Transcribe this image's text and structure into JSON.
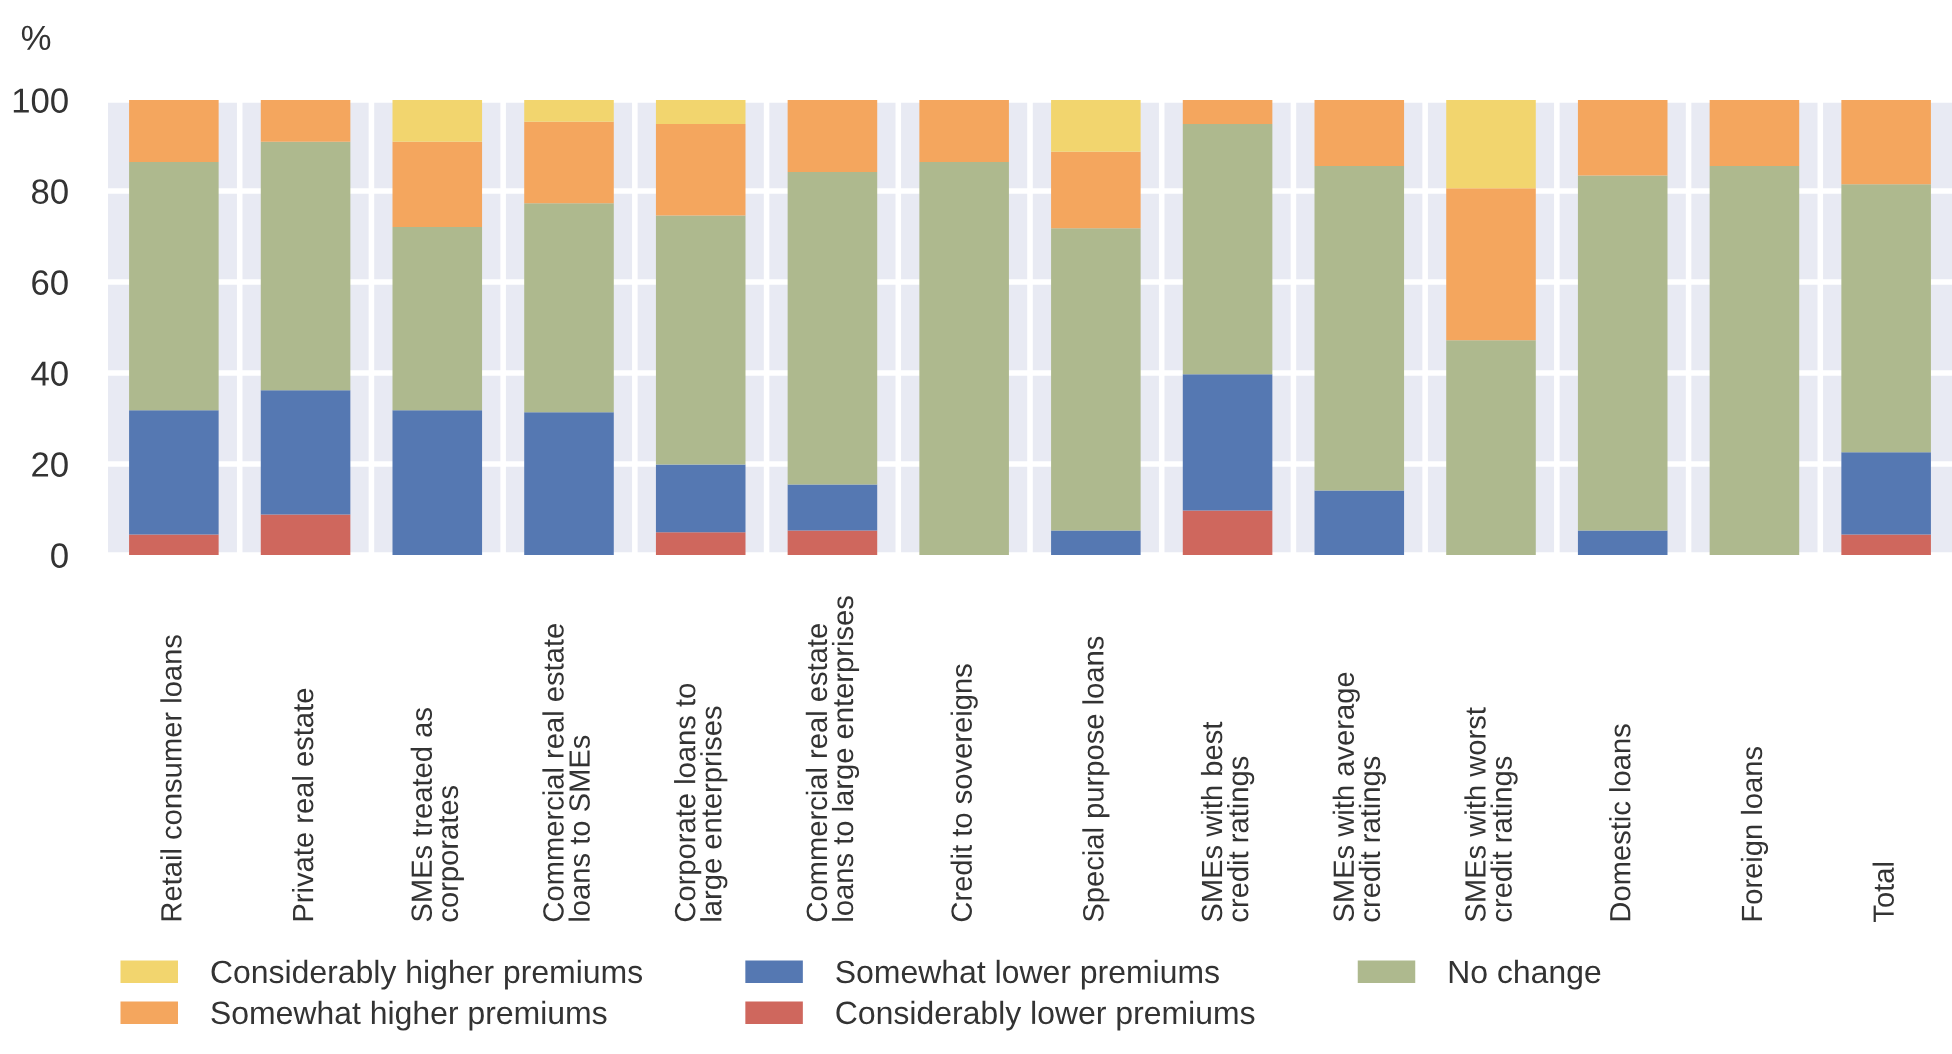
{
  "chart_data": {
    "type": "bar",
    "stacked": true,
    "ylabel": "%",
    "categories": [
      "Retail consumer loans",
      "Private real estate",
      "SMEs treated as\ncorporates",
      "Commercial real estate\nloans to SMEs",
      "Corporate loans to\nlarge enterprises",
      "Commercial real estate\nloans to large enterprises",
      "Credit to sovereigns",
      "Special purpose loans",
      "SMEs with best\ncredit ratings",
      "SMEs with average\ncredit ratings",
      "SMEs with worst\ncredit ratings",
      "Domestic loans",
      "Foreign loans",
      "Total"
    ],
    "series": [
      {
        "name": "Considerably lower premiums",
        "color": "#cf675d",
        "values": [
          4.5,
          8.9,
          null,
          null,
          5.0,
          5.4,
          null,
          null,
          9.8,
          null,
          null,
          null,
          null,
          4.5
        ]
      },
      {
        "name": "Somewhat lower premiums",
        "color": "#5578b2",
        "values": [
          27.3,
          27.3,
          31.8,
          31.4,
          14.9,
          10.1,
          null,
          5.4,
          29.9,
          14.2,
          null,
          5.4,
          null,
          18.1
        ]
      },
      {
        "name": "No change",
        "color": "#aeb98e",
        "values": [
          54.6,
          54.6,
          40.3,
          45.9,
          54.7,
          68.7,
          86.4,
          66.4,
          55.0,
          71.3,
          47.2,
          78.0,
          85.5,
          58.9
        ]
      },
      {
        "name": "Somewhat higher premiums",
        "color": "#f4a65e",
        "values": [
          13.6,
          9.2,
          18.7,
          17.9,
          20.1,
          15.8,
          13.6,
          16.8,
          5.3,
          14.5,
          33.4,
          16.6,
          14.5,
          18.5
        ]
      },
      {
        "name": "Considerably higher premiums",
        "color": "#f2d56e",
        "values": [
          null,
          null,
          9.2,
          4.8,
          5.3,
          null,
          null,
          11.4,
          null,
          null,
          19.4,
          null,
          null,
          null
        ]
      }
    ],
    "ylim": [
      0,
      100
    ],
    "yticks": [
      0,
      20,
      40,
      60,
      80,
      100
    ],
    "grid": true,
    "legend": "bottom"
  }
}
